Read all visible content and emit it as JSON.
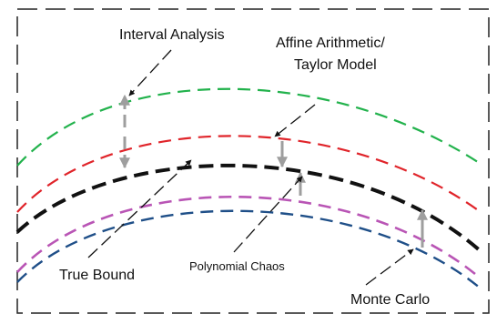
{
  "labels": {
    "interval_analysis": "Interval Analysis",
    "affine_line1": "Affine Arithmetic/",
    "affine_line2": "Taylor Model",
    "true_bound": "True Bound",
    "polynomial_chaos": "Polynomial Chaos",
    "monte_carlo": "Monte Carlo"
  },
  "curves": [
    {
      "name": "interval-analysis-bound",
      "color": "#22b24c"
    },
    {
      "name": "affine-taylor-bound",
      "color": "#e0242a"
    },
    {
      "name": "true-bound",
      "color": "#111111"
    },
    {
      "name": "polynomial-chaos-bound",
      "color": "#b955b5"
    },
    {
      "name": "monte-carlo-bound",
      "color": "#1f4f88"
    }
  ],
  "colors": {
    "frame": "#222222",
    "arrow": "#9e9e9e",
    "pointer": "#111111"
  }
}
